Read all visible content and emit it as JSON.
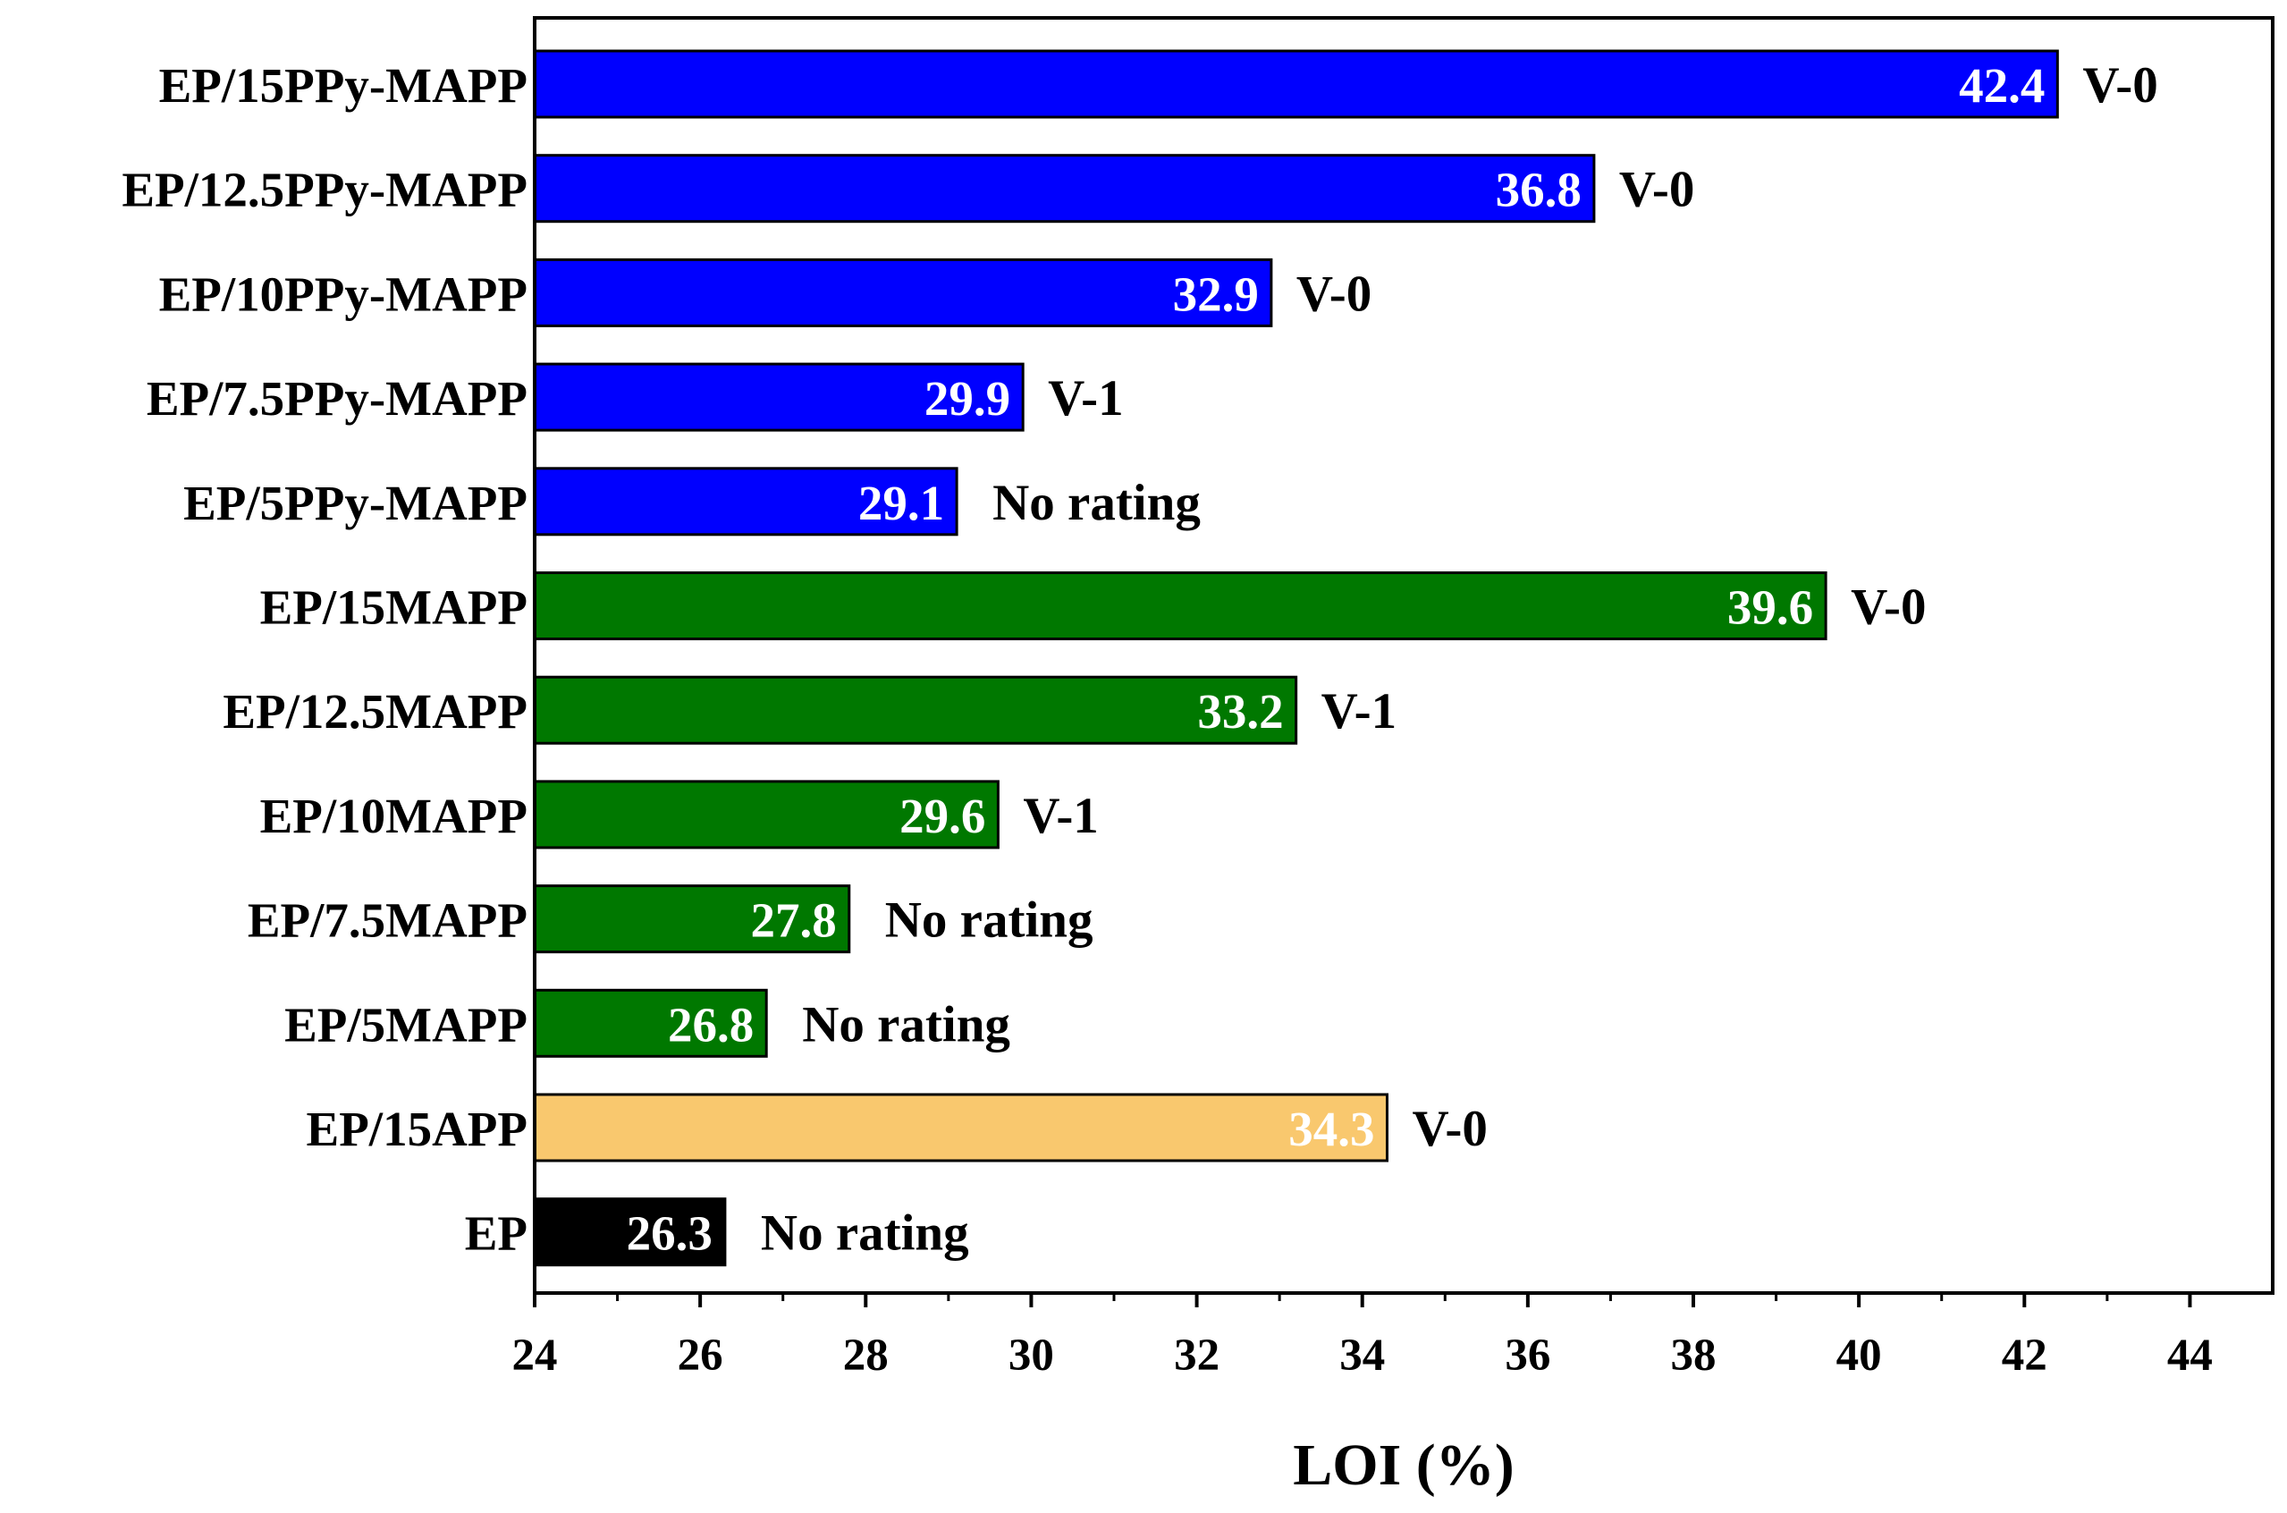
{
  "chart_data": {
    "type": "bar",
    "orientation": "horizontal",
    "title": "",
    "xlabel": "LOI (%)",
    "ylabel": "",
    "xlim": [
      24,
      45
    ],
    "x_ticks": [
      24,
      26,
      28,
      30,
      32,
      34,
      36,
      38,
      40,
      42,
      44
    ],
    "categories": [
      "EP/15PPy-MAPP",
      "EP/12.5PPy-MAPP",
      "EP/10PPy-MAPP",
      "EP/7.5PPy-MAPP",
      "EP/5PPy-MAPP",
      "EP/15MAPP",
      "EP/12.5MAPP",
      "EP/10MAPP",
      "EP/7.5MAPP",
      "EP/5MAPP",
      "EP/15APP",
      "EP"
    ],
    "values": [
      42.4,
      36.8,
      32.9,
      29.9,
      29.1,
      39.6,
      33.2,
      29.6,
      27.8,
      26.8,
      34.3,
      26.3
    ],
    "value_labels": [
      "42.4",
      "36.8",
      "32.9",
      "29.9",
      "29.1",
      "39.6",
      "33.2",
      "29.6",
      "27.8",
      "26.8",
      "34.3",
      "26.3"
    ],
    "ratings": [
      "V-0",
      "V-0",
      "V-0",
      "V-1",
      "No rating",
      "V-0",
      "V-1",
      "V-1",
      "No rating",
      "No rating",
      "V-0",
      "No rating"
    ],
    "bar_colors": [
      "#0000ff",
      "#0000ff",
      "#0000ff",
      "#0000ff",
      "#0000ff",
      "#007800",
      "#007800",
      "#007800",
      "#007800",
      "#007800",
      "#f9c86e",
      "#000000"
    ],
    "value_label_color": "#ffffff",
    "grid": false
  }
}
